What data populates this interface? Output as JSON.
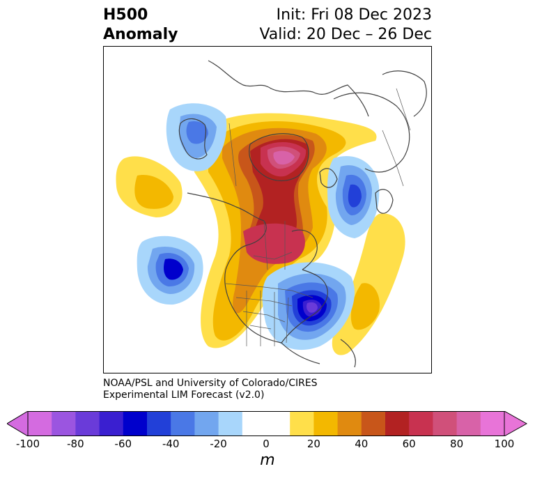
{
  "header": {
    "title_line1": "H500",
    "title_line2": "Anomaly",
    "init_label": "Init: Fri 08 Dec 2023",
    "valid_label": "Valid: 20 Dec – 26 Dec"
  },
  "credit": {
    "line1": "NOAA/PSL and University of Colorado/CIRES",
    "line2": "Experimental LIM Forecast (v2.0)"
  },
  "colorbar": {
    "unit": "m",
    "ticks": [
      "-100",
      "-80",
      "-60",
      "-40",
      "-20",
      "0",
      "20",
      "40",
      "60",
      "80",
      "100"
    ],
    "colors": [
      "#d46be0",
      "#9b55e0",
      "#6a3bd9",
      "#3a1fd0",
      "#0000cc",
      "#2240d8",
      "#4a78e6",
      "#72a6ef",
      "#a8d6fb",
      "#ffffff",
      "#ffffff",
      "#ffdf4a",
      "#f3b800",
      "#e08a10",
      "#c8561a",
      "#b22222",
      "#c83250",
      "#d0507a",
      "#d862a8",
      "#e874d8"
    ],
    "extend_low_color": "#d46be0",
    "extend_high_color": "#e874d8"
  }
}
